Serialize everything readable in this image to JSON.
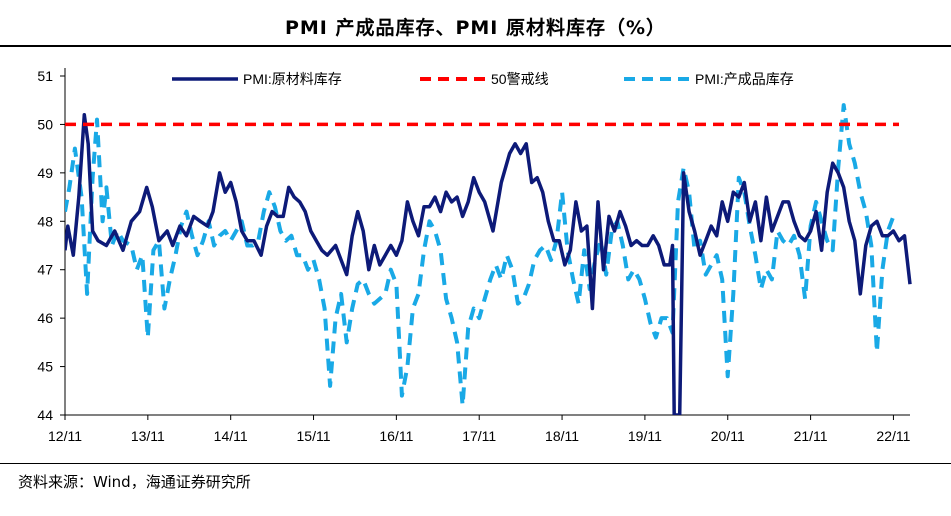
{
  "header": {
    "title": "PMI 产成品库存、PMI 原材料库存（%）"
  },
  "footer": {
    "source": "资料来源：Wind，海通证券研究所"
  },
  "chart_data": {
    "type": "line",
    "title": "PMI 产成品库存、PMI 原材料库存（%）",
    "xlabel": "",
    "ylabel": "",
    "ylim": [
      44,
      51
    ],
    "yticks": [
      44,
      45,
      46,
      47,
      48,
      49,
      50,
      51
    ],
    "x_tick_labels": [
      "12/11",
      "13/11",
      "14/11",
      "15/11",
      "16/11",
      "17/11",
      "18/11",
      "19/11",
      "20/11",
      "21/11",
      "22/11"
    ],
    "x_start": "2012-11",
    "x_end": "2022-11",
    "legend_position": "top",
    "series": [
      {
        "name": "PMI:原材料库存",
        "color": "#0d1a78",
        "style": "solid",
        "points": [
          [
            0.0,
            47.4
          ],
          [
            0.05,
            47.9
          ],
          [
            0.15,
            47.3
          ],
          [
            0.25,
            48.5
          ],
          [
            0.35,
            50.2
          ],
          [
            0.42,
            49.6
          ],
          [
            0.5,
            47.8
          ],
          [
            0.6,
            47.6
          ],
          [
            0.75,
            47.5
          ],
          [
            0.9,
            47.8
          ],
          [
            1.05,
            47.4
          ],
          [
            1.2,
            48.0
          ],
          [
            1.35,
            48.2
          ],
          [
            1.48,
            48.7
          ],
          [
            1.58,
            48.3
          ],
          [
            1.7,
            47.6
          ],
          [
            1.85,
            47.8
          ],
          [
            1.95,
            47.5
          ],
          [
            2.08,
            47.9
          ],
          [
            2.2,
            47.7
          ],
          [
            2.33,
            48.1
          ],
          [
            2.45,
            48.0
          ],
          [
            2.58,
            47.9
          ],
          [
            2.68,
            48.2
          ],
          [
            2.8,
            49.0
          ],
          [
            2.9,
            48.6
          ],
          [
            3.0,
            48.8
          ],
          [
            3.1,
            48.4
          ],
          [
            3.2,
            47.8
          ],
          [
            3.3,
            47.6
          ],
          [
            3.42,
            47.6
          ],
          [
            3.55,
            47.3
          ],
          [
            3.65,
            47.9
          ],
          [
            3.75,
            48.2
          ],
          [
            3.85,
            48.1
          ],
          [
            3.95,
            48.1
          ],
          [
            4.05,
            48.7
          ],
          [
            4.15,
            48.5
          ],
          [
            4.25,
            48.4
          ],
          [
            4.35,
            48.2
          ],
          [
            4.45,
            47.8
          ],
          [
            4.55,
            47.6
          ],
          [
            4.65,
            47.4
          ],
          [
            4.75,
            47.3
          ],
          [
            4.9,
            47.5
          ],
          [
            5.0,
            47.2
          ],
          [
            5.1,
            46.9
          ],
          [
            5.2,
            47.7
          ],
          [
            5.3,
            48.2
          ],
          [
            5.4,
            47.8
          ],
          [
            5.5,
            47.0
          ],
          [
            5.6,
            47.5
          ],
          [
            5.7,
            47.1
          ],
          [
            5.8,
            47.3
          ],
          [
            5.9,
            47.5
          ],
          [
            6.0,
            47.3
          ],
          [
            6.1,
            47.6
          ],
          [
            6.2,
            48.4
          ],
          [
            6.3,
            48.0
          ],
          [
            6.4,
            47.7
          ],
          [
            6.5,
            48.3
          ],
          [
            6.6,
            48.3
          ],
          [
            6.7,
            48.5
          ],
          [
            6.8,
            48.2
          ],
          [
            6.9,
            48.6
          ],
          [
            7.0,
            48.4
          ],
          [
            7.1,
            48.5
          ],
          [
            7.2,
            48.1
          ],
          [
            7.3,
            48.4
          ],
          [
            7.4,
            48.9
          ],
          [
            7.5,
            48.6
          ],
          [
            7.6,
            48.4
          ],
          [
            7.75,
            47.8
          ],
          [
            7.9,
            48.8
          ],
          [
            8.05,
            49.4
          ],
          [
            8.15,
            49.6
          ],
          [
            8.25,
            49.4
          ],
          [
            8.35,
            49.6
          ],
          [
            8.45,
            48.8
          ],
          [
            8.55,
            48.9
          ],
          [
            8.65,
            48.6
          ],
          [
            8.75,
            48.0
          ],
          [
            8.85,
            47.6
          ],
          [
            8.95,
            47.6
          ],
          [
            9.05,
            47.1
          ],
          [
            9.15,
            47.4
          ],
          [
            9.25,
            48.4
          ],
          [
            9.35,
            47.8
          ],
          [
            9.45,
            47.9
          ],
          [
            9.55,
            46.2
          ],
          [
            9.65,
            48.4
          ],
          [
            9.75,
            47.0
          ],
          [
            9.85,
            48.1
          ],
          [
            9.95,
            47.8
          ],
          [
            10.05,
            48.2
          ],
          [
            10.15,
            47.9
          ],
          [
            10.25,
            47.5
          ],
          [
            10.35,
            47.6
          ],
          [
            10.45,
            47.5
          ],
          [
            10.55,
            47.5
          ],
          [
            10.65,
            47.7
          ],
          [
            10.75,
            47.5
          ],
          [
            10.85,
            47.1
          ],
          [
            10.95,
            47.1
          ],
          [
            11.0,
            47.5
          ],
          [
            11.03,
            44.0
          ],
          [
            11.13,
            44.0
          ],
          [
            11.2,
            49.0
          ],
          [
            11.3,
            48.2
          ],
          [
            11.4,
            47.8
          ],
          [
            11.5,
            47.3
          ],
          [
            11.6,
            47.6
          ],
          [
            11.7,
            47.9
          ],
          [
            11.8,
            47.7
          ],
          [
            11.9,
            48.4
          ],
          [
            12.0,
            48.0
          ],
          [
            12.1,
            48.6
          ],
          [
            12.2,
            48.5
          ],
          [
            12.3,
            48.8
          ],
          [
            12.4,
            48.0
          ],
          [
            12.5,
            48.4
          ],
          [
            12.6,
            47.6
          ],
          [
            12.7,
            48.5
          ],
          [
            12.8,
            47.8
          ],
          [
            12.9,
            48.1
          ],
          [
            13.0,
            48.4
          ],
          [
            13.1,
            48.4
          ],
          [
            13.2,
            48.0
          ],
          [
            13.3,
            47.7
          ],
          [
            13.4,
            47.6
          ],
          [
            13.5,
            47.8
          ],
          [
            13.6,
            48.2
          ],
          [
            13.7,
            47.4
          ],
          [
            13.8,
            48.6
          ],
          [
            13.9,
            49.2
          ],
          [
            14.0,
            49.0
          ],
          [
            14.1,
            48.7
          ],
          [
            14.2,
            48.0
          ],
          [
            14.3,
            47.6
          ],
          [
            14.4,
            46.5
          ],
          [
            14.5,
            47.5
          ],
          [
            14.6,
            47.9
          ],
          [
            14.7,
            48.0
          ],
          [
            14.8,
            47.7
          ],
          [
            14.9,
            47.7
          ],
          [
            15.0,
            47.8
          ],
          [
            15.1,
            47.6
          ],
          [
            15.2,
            47.7
          ],
          [
            15.3,
            46.7
          ]
        ]
      },
      {
        "name": "50警戒线",
        "color": "#ff0000",
        "style": "dashed",
        "points": [
          [
            0.0,
            50.0
          ],
          [
            15.1,
            50.0
          ]
        ]
      },
      {
        "name": "PMI:产成品库存",
        "color": "#19a9e6",
        "style": "dashed",
        "points": [
          [
            0.0,
            48.2
          ],
          [
            0.08,
            48.7
          ],
          [
            0.18,
            49.5
          ],
          [
            0.3,
            48.5
          ],
          [
            0.4,
            46.5
          ],
          [
            0.5,
            48.9
          ],
          [
            0.58,
            50.1
          ],
          [
            0.68,
            48.0
          ],
          [
            0.75,
            48.7
          ],
          [
            0.85,
            47.5
          ],
          [
            0.95,
            47.8
          ],
          [
            1.05,
            47.6
          ],
          [
            1.2,
            47.5
          ],
          [
            1.3,
            47.0
          ],
          [
            1.4,
            47.3
          ],
          [
            1.5,
            45.6
          ],
          [
            1.6,
            47.4
          ],
          [
            1.7,
            47.6
          ],
          [
            1.8,
            46.2
          ],
          [
            1.9,
            46.8
          ],
          [
            2.0,
            47.3
          ],
          [
            2.1,
            47.9
          ],
          [
            2.2,
            48.2
          ],
          [
            2.3,
            47.7
          ],
          [
            2.4,
            47.3
          ],
          [
            2.5,
            47.6
          ],
          [
            2.6,
            48.0
          ],
          [
            2.7,
            47.5
          ],
          [
            2.8,
            47.7
          ],
          [
            2.9,
            47.8
          ],
          [
            3.0,
            47.6
          ],
          [
            3.1,
            47.8
          ],
          [
            3.2,
            48.0
          ],
          [
            3.3,
            47.5
          ],
          [
            3.4,
            47.5
          ],
          [
            3.5,
            47.6
          ],
          [
            3.6,
            48.2
          ],
          [
            3.7,
            48.6
          ],
          [
            3.8,
            48.3
          ],
          [
            3.9,
            47.8
          ],
          [
            4.0,
            47.6
          ],
          [
            4.1,
            47.7
          ],
          [
            4.2,
            47.3
          ],
          [
            4.3,
            47.3
          ],
          [
            4.4,
            47.0
          ],
          [
            4.5,
            47.2
          ],
          [
            4.6,
            46.8
          ],
          [
            4.7,
            46.2
          ],
          [
            4.8,
            44.6
          ],
          [
            4.9,
            46.0
          ],
          [
            5.0,
            46.5
          ],
          [
            5.1,
            45.5
          ],
          [
            5.2,
            46.2
          ],
          [
            5.3,
            46.7
          ],
          [
            5.4,
            46.8
          ],
          [
            5.5,
            46.5
          ],
          [
            5.6,
            46.3
          ],
          [
            5.7,
            46.4
          ],
          [
            5.8,
            46.5
          ],
          [
            5.9,
            47.0
          ],
          [
            6.0,
            46.7
          ],
          [
            6.1,
            44.4
          ],
          [
            6.2,
            45.0
          ],
          [
            6.3,
            46.2
          ],
          [
            6.4,
            46.5
          ],
          [
            6.5,
            47.4
          ],
          [
            6.6,
            48.0
          ],
          [
            6.7,
            47.8
          ],
          [
            6.8,
            47.4
          ],
          [
            6.9,
            46.4
          ],
          [
            7.0,
            46.0
          ],
          [
            7.1,
            45.5
          ],
          [
            7.2,
            44.2
          ],
          [
            7.3,
            45.8
          ],
          [
            7.4,
            46.2
          ],
          [
            7.5,
            46.0
          ],
          [
            7.6,
            46.4
          ],
          [
            7.7,
            46.8
          ],
          [
            7.8,
            47.1
          ],
          [
            7.9,
            46.8
          ],
          [
            8.0,
            47.3
          ],
          [
            8.1,
            47.0
          ],
          [
            8.2,
            46.3
          ],
          [
            8.3,
            46.4
          ],
          [
            8.4,
            46.7
          ],
          [
            8.5,
            47.2
          ],
          [
            8.6,
            47.4
          ],
          [
            8.7,
            47.5
          ],
          [
            8.8,
            47.2
          ],
          [
            8.9,
            47.6
          ],
          [
            9.0,
            48.6
          ],
          [
            9.1,
            47.4
          ],
          [
            9.2,
            46.8
          ],
          [
            9.3,
            46.3
          ],
          [
            9.4,
            47.4
          ],
          [
            9.5,
            46.6
          ],
          [
            9.6,
            47.2
          ],
          [
            9.7,
            47.6
          ],
          [
            9.8,
            46.9
          ],
          [
            9.9,
            47.8
          ],
          [
            10.0,
            48.0
          ],
          [
            10.1,
            47.5
          ],
          [
            10.2,
            46.8
          ],
          [
            10.3,
            47.0
          ],
          [
            10.4,
            46.8
          ],
          [
            10.5,
            46.4
          ],
          [
            10.6,
            45.9
          ],
          [
            10.7,
            45.6
          ],
          [
            10.8,
            46.0
          ],
          [
            10.9,
            46.0
          ],
          [
            11.0,
            45.7
          ],
          [
            11.1,
            48.4
          ],
          [
            11.2,
            49.1
          ],
          [
            11.3,
            48.6
          ],
          [
            11.4,
            47.4
          ],
          [
            11.5,
            47.6
          ],
          [
            11.6,
            46.9
          ],
          [
            11.7,
            47.1
          ],
          [
            11.8,
            47.3
          ],
          [
            11.9,
            46.8
          ],
          [
            12.0,
            44.8
          ],
          [
            12.1,
            46.5
          ],
          [
            12.2,
            48.9
          ],
          [
            12.3,
            48.6
          ],
          [
            12.4,
            47.9
          ],
          [
            12.5,
            47.3
          ],
          [
            12.6,
            46.6
          ],
          [
            12.7,
            47.0
          ],
          [
            12.8,
            46.8
          ],
          [
            12.9,
            47.8
          ],
          [
            13.0,
            47.6
          ],
          [
            13.1,
            47.5
          ],
          [
            13.2,
            47.7
          ],
          [
            13.3,
            47.3
          ],
          [
            13.4,
            46.4
          ],
          [
            13.5,
            47.9
          ],
          [
            13.6,
            48.4
          ],
          [
            13.7,
            48.0
          ],
          [
            13.8,
            47.6
          ],
          [
            13.9,
            47.4
          ],
          [
            14.0,
            49.1
          ],
          [
            14.1,
            50.4
          ],
          [
            14.2,
            49.6
          ],
          [
            14.3,
            49.2
          ],
          [
            14.4,
            48.6
          ],
          [
            14.5,
            48.2
          ],
          [
            14.6,
            47.5
          ],
          [
            14.7,
            45.3
          ],
          [
            14.8,
            47.0
          ],
          [
            14.9,
            47.8
          ],
          [
            15.0,
            48.1
          ]
        ]
      }
    ]
  }
}
